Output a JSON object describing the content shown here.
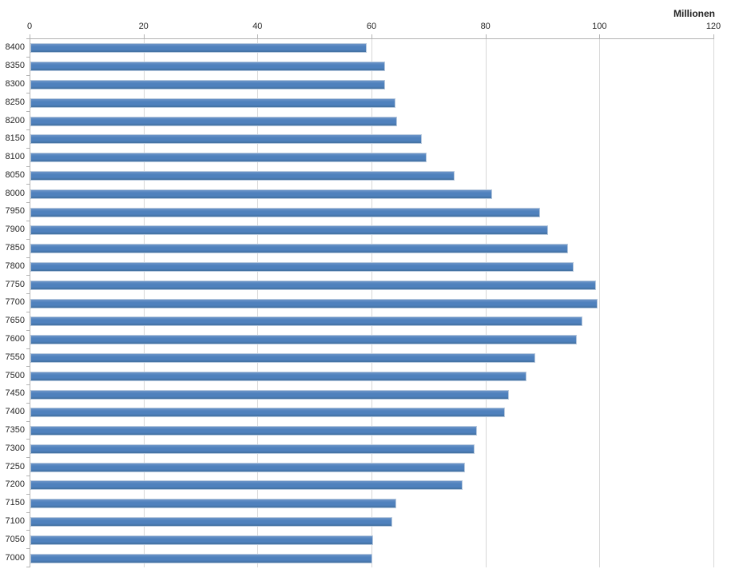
{
  "chart_data": {
    "type": "bar",
    "orientation": "horizontal",
    "title": "",
    "unit_label": "Millionen",
    "xlabel": "Millionen",
    "ylabel": "",
    "xlim": [
      0,
      120
    ],
    "x_ticks": [
      0,
      20,
      40,
      60,
      80,
      100,
      120
    ],
    "grid": true,
    "legend": false,
    "bar_color": "#4F81BD",
    "gridline_color": "#D8D8D8",
    "axis_color": "#B3B3B3",
    "text_color": "#262626",
    "categories": [
      "8400",
      "8350",
      "8300",
      "8250",
      "8200",
      "8150",
      "8100",
      "8050",
      "8000",
      "7950",
      "7900",
      "7850",
      "7800",
      "7750",
      "7700",
      "7650",
      "7600",
      "7550",
      "7500",
      "7450",
      "7400",
      "7350",
      "7300",
      "7250",
      "7200",
      "7150",
      "7100",
      "7050",
      "7000"
    ],
    "values": [
      59.0,
      62.2,
      62.3,
      64.0,
      64.4,
      68.7,
      69.5,
      74.4,
      81.0,
      89.5,
      90.8,
      94.4,
      95.3,
      99.2,
      99.5,
      96.8,
      95.9,
      88.6,
      87.0,
      84.0,
      83.2,
      78.4,
      78.0,
      76.3,
      75.8,
      64.2,
      63.5,
      60.1,
      60.0
    ]
  }
}
